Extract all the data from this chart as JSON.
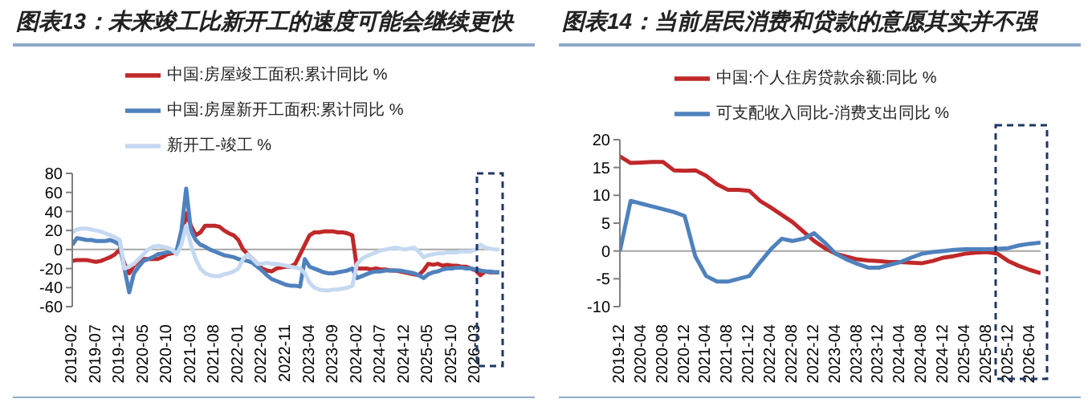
{
  "chart_data": [
    {
      "type": "line",
      "title": "图表13：未来竣工比新开工的速度可能会继续更快",
      "categories": [
        "2019-02",
        null,
        null,
        null,
        null,
        "2019-07",
        null,
        null,
        null,
        null,
        "2019-12",
        null,
        null,
        null,
        null,
        "2020-05",
        null,
        null,
        null,
        null,
        "2020-10",
        null,
        null,
        null,
        null,
        "2021-03",
        null,
        null,
        null,
        null,
        "2021-08",
        null,
        null,
        null,
        null,
        "2022-01",
        null,
        null,
        null,
        null,
        "2022-06",
        null,
        null,
        null,
        null,
        "2022-11",
        null,
        null,
        null,
        null,
        "2023-04",
        null,
        null,
        null,
        null,
        "2023-09",
        null,
        null,
        null,
        null,
        "2024-02",
        null,
        null,
        null,
        null,
        "2024-07",
        null,
        null,
        null,
        null,
        "2024-12",
        null,
        null,
        null,
        null,
        "2025-05",
        null,
        null,
        null,
        null,
        "2025-10",
        null,
        null,
        null,
        null,
        "2026-03",
        null,
        null,
        null,
        null,
        null
      ],
      "series": [
        {
          "name": "中国:房屋竣工面积:累计同比 %",
          "color": "#c0282a",
          "values": [
            -12,
            -11,
            -11,
            -11,
            -12,
            -13,
            -12,
            -10,
            -8,
            -5,
            0,
            -15,
            -25,
            -17,
            -12,
            -10,
            -10,
            -10,
            -10,
            -8,
            -5,
            -4,
            -3,
            10,
            38,
            25,
            15,
            18,
            25,
            25,
            25,
            24,
            20,
            17,
            15,
            10,
            0,
            -5,
            -10,
            -15,
            -20,
            -22,
            -23,
            -20,
            -19,
            -18,
            -18,
            -15,
            -5,
            5,
            15,
            18,
            18,
            19,
            19,
            19,
            18,
            18,
            17,
            15,
            -20,
            -20,
            -20,
            -21,
            -20,
            -21,
            -21,
            -22,
            -22,
            -23,
            -24,
            -25,
            -26,
            -27,
            -22,
            -15,
            -16,
            -15,
            -17,
            -16,
            -17,
            -17,
            -18,
            -18,
            -20,
            -22,
            -27,
            -23,
            -24,
            -24,
            -24
          ]
        },
        {
          "name": "中国:房屋新开工面积:累计同比 %",
          "color": "#4f81bd",
          "values": [
            5,
            12,
            11,
            10,
            10,
            9,
            9,
            9,
            10,
            8,
            5,
            -20,
            -45,
            -25,
            -18,
            -12,
            -10,
            -8,
            -5,
            -4,
            -3,
            -2,
            -1,
            20,
            64,
            20,
            10,
            5,
            3,
            0,
            -2,
            -4,
            -6,
            -7,
            -8,
            -10,
            -11,
            -12,
            -14,
            -18,
            -22,
            -27,
            -31,
            -33,
            -35,
            -37,
            -38,
            -38,
            -39,
            -10,
            -18,
            -20,
            -22,
            -24,
            -25,
            -25,
            -24,
            -23,
            -22,
            -20,
            -30,
            -28,
            -26,
            -24,
            -23,
            -23,
            -22,
            -22,
            -22,
            -22,
            -23,
            -24,
            -25,
            -27,
            -30,
            -26,
            -24,
            -23,
            -21,
            -20,
            -20,
            -19,
            -19,
            -20,
            -20,
            -21,
            -22,
            -23,
            -23,
            -24,
            -24
          ]
        },
        {
          "name": "新开工-竣工 %",
          "color": "#c5d9f1",
          "values": [
            18,
            21,
            22,
            22,
            21,
            20,
            19,
            17,
            15,
            13,
            10,
            -20,
            -18,
            -15,
            -10,
            -5,
            0,
            3,
            4,
            3,
            2,
            0,
            -5,
            5,
            25,
            5,
            -10,
            -20,
            -25,
            -27,
            -28,
            -28,
            -26,
            -25,
            -23,
            -20,
            -10,
            -5,
            -10,
            -15,
            -15,
            -14,
            -15,
            -15,
            -16,
            -17,
            -18,
            -19,
            -20,
            -25,
            -35,
            -40,
            -42,
            -43,
            -43,
            -42,
            -42,
            -41,
            -40,
            -38,
            -15,
            -10,
            -7,
            -5,
            -3,
            -1,
            0,
            1,
            2,
            1,
            0,
            1,
            2,
            -2,
            -8,
            -6,
            -5,
            -4,
            -4,
            -3,
            -3,
            -3,
            -2,
            -2,
            -2,
            0,
            5,
            2,
            1,
            0,
            0
          ]
        }
      ],
      "ylim": [
        -60,
        80
      ],
      "yticks": [
        -60,
        -40,
        -20,
        0,
        20,
        40,
        60,
        80
      ],
      "ref_lines": [
        {
          "axis": "y",
          "value": 0,
          "color": "#a6a6a6"
        }
      ],
      "grid": false,
      "legend": "top",
      "marker": "none",
      "line_style": "solid"
    },
    {
      "type": "line",
      "title": "图表14：当前居民消费和贷款的意愿其实并不强",
      "categories": [
        "2019-12",
        null,
        "2020-04",
        null,
        "2020-08",
        null,
        "2020-12",
        null,
        "2021-04",
        null,
        "2021-08",
        null,
        "2021-12",
        null,
        "2022-04",
        null,
        "2022-08",
        null,
        "2022-12",
        null,
        "2023-04",
        null,
        "2023-08",
        null,
        "2023-12",
        null,
        "2024-04",
        null,
        "2024-08",
        null,
        "2024-12",
        null,
        "2025-04",
        null,
        "2025-08",
        null,
        "2025-12",
        null,
        "2026-04",
        null
      ],
      "series": [
        {
          "name": "中国:个人住房贷款余额:同比 %",
          "color": "#c0282a",
          "values": [
            17,
            15.8,
            15.9,
            16,
            16,
            14.5,
            14.4,
            14.5,
            13.5,
            12,
            11,
            11,
            10.8,
            9,
            7.8,
            6.5,
            5.2,
            3.5,
            1.8,
            0.5,
            -0.5,
            -1,
            -1.5,
            -1.7,
            -1.8,
            -2,
            -2,
            -2.1,
            -2.2,
            -1.8,
            -1.2,
            -0.9,
            -0.5,
            -0.3,
            -0.2,
            -0.5,
            -1.8,
            -2.7,
            -3.4,
            -4
          ]
        },
        {
          "name": "可支配收入同比-消费支出同比 %",
          "color": "#4f81bd",
          "values": [
            0,
            9,
            8.5,
            8,
            7.5,
            7,
            6.3,
            -1,
            -4.5,
            -5.5,
            -5.5,
            -5,
            -4.5,
            -2,
            0.3,
            2.2,
            1.8,
            2.2,
            3.2,
            1.5,
            -0.5,
            -1.5,
            -2.3,
            -3,
            -3,
            -2.5,
            -2,
            -1.2,
            -0.5,
            -0.2,
            0,
            0.2,
            0.3,
            0.3,
            0.3,
            0.4,
            0.5,
            1,
            1.3,
            1.5
          ]
        }
      ],
      "ylim": [
        -10,
        20
      ],
      "yticks": [
        -10,
        -5,
        0,
        5,
        10,
        15,
        20
      ],
      "ref_lines": [
        {
          "axis": "y",
          "value": 0,
          "color": "#a6a6a6"
        }
      ],
      "grid": false,
      "legend": "top",
      "marker": "none",
      "line_style": "solid"
    }
  ]
}
